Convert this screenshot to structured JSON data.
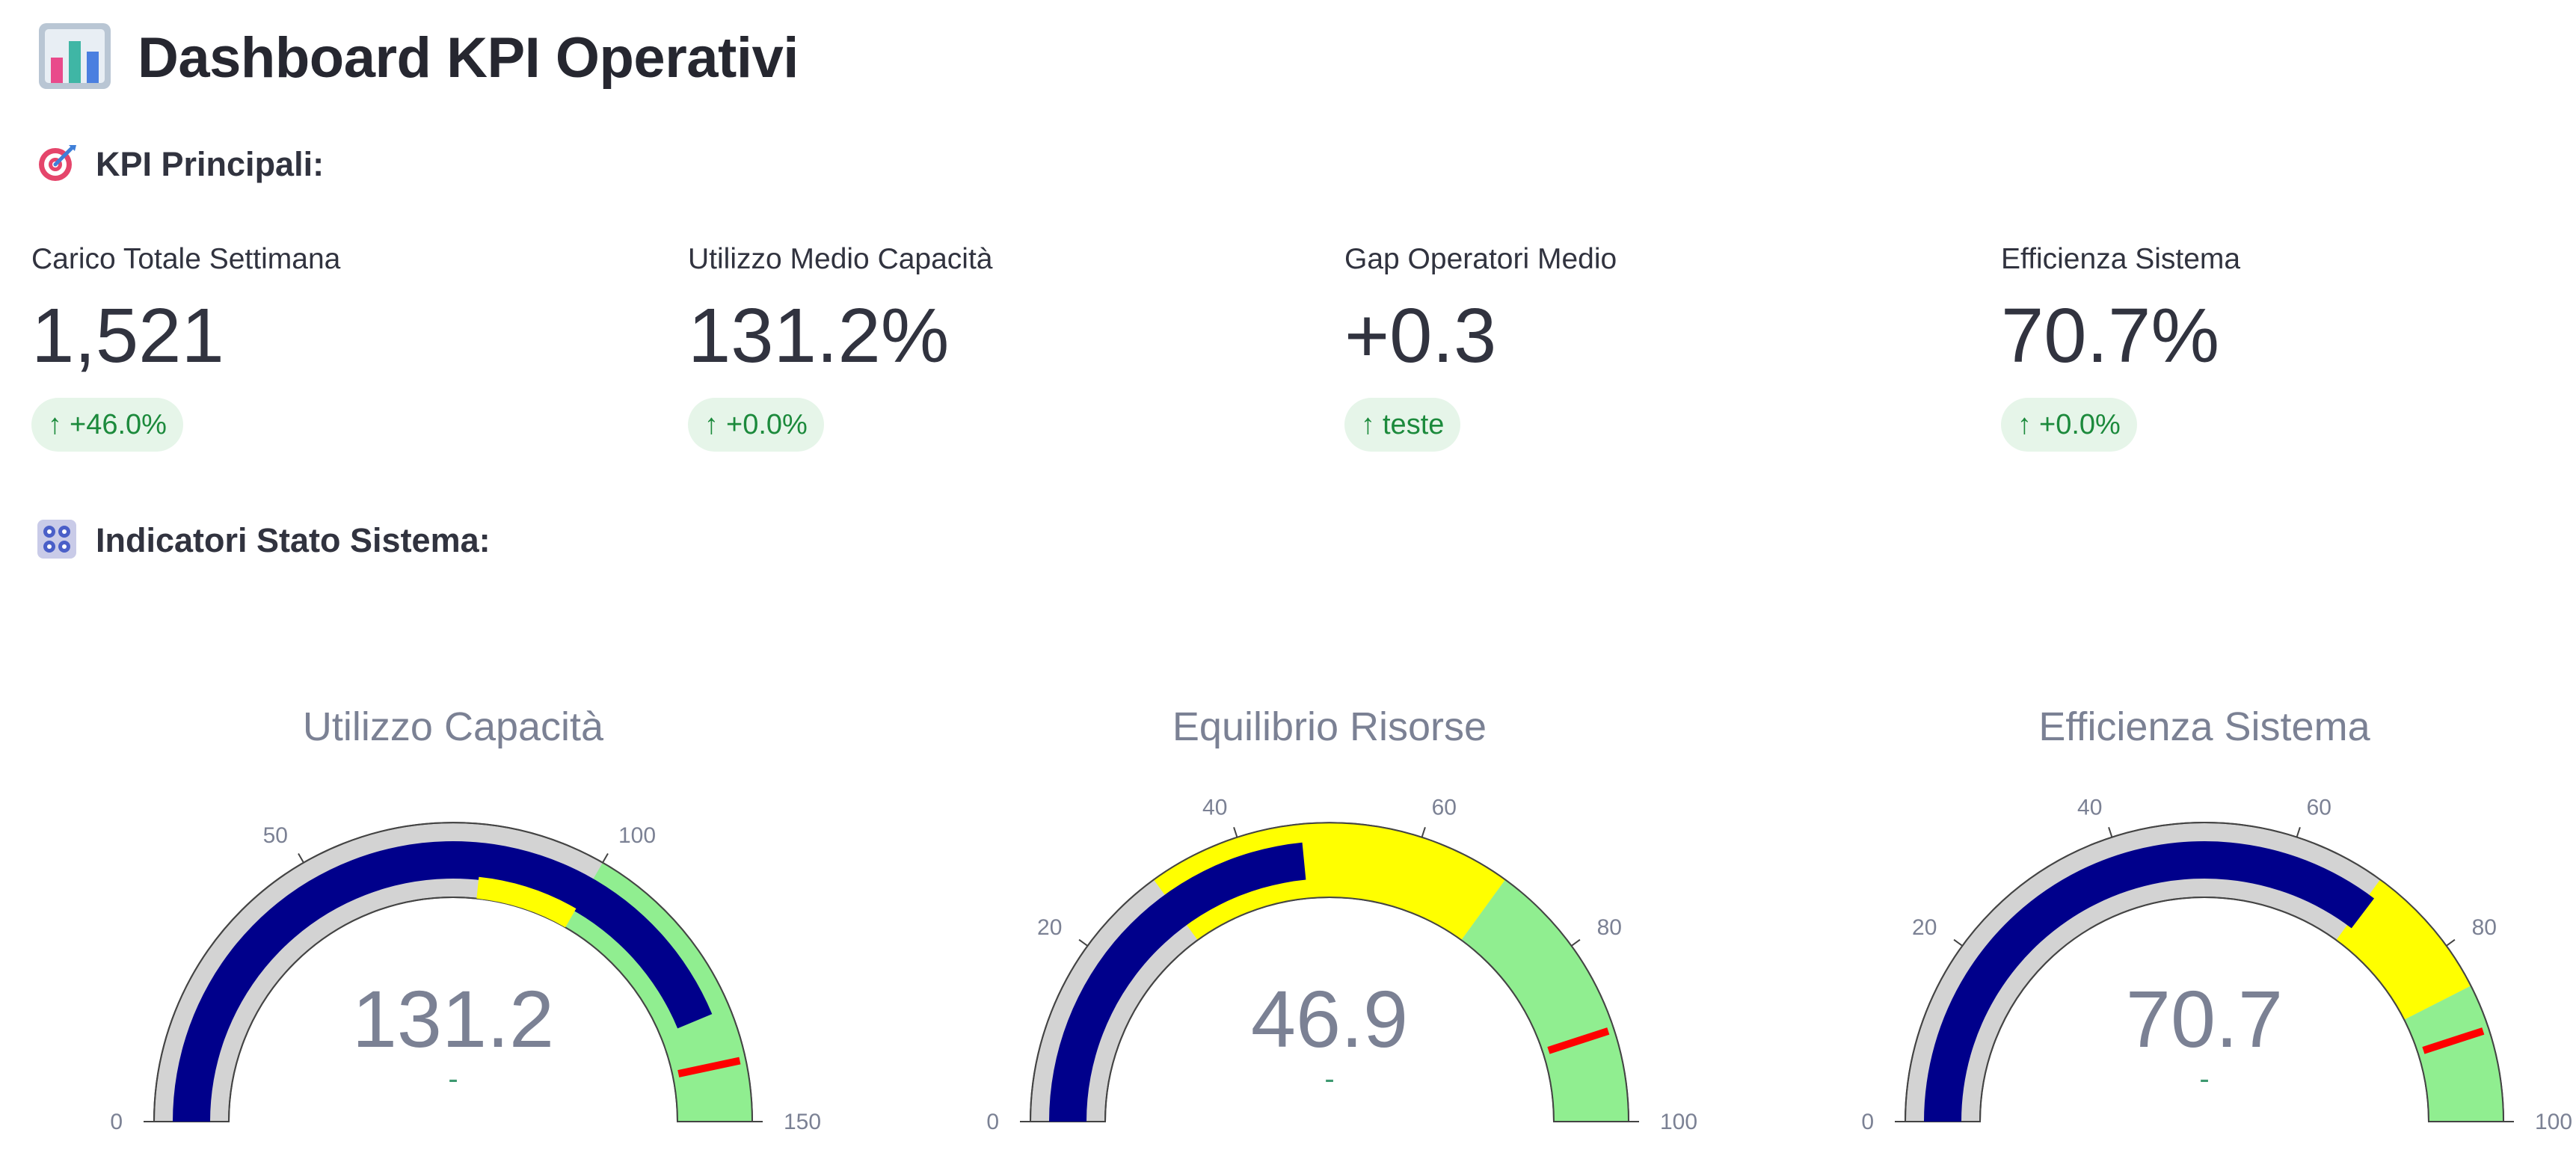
{
  "header": {
    "title": "Dashboard KPI Operativi",
    "icon": "bar-chart-icon"
  },
  "sections": {
    "kpi": {
      "label": "KPI Principali:",
      "icon": "target-icon"
    },
    "status": {
      "label": "Indicatori Stato Sistema:",
      "icon": "control-knobs-icon"
    }
  },
  "metrics": [
    {
      "label": "Carico Totale Settimana",
      "value": "1,521",
      "delta": "+46.0%"
    },
    {
      "label": "Utilizzo Medio Capacità",
      "value": "131.2%",
      "delta": "+0.0%"
    },
    {
      "label": "Gap Operatori Medio",
      "value": "+0.3",
      "delta": "teste"
    },
    {
      "label": "Efficienza Sistema",
      "value": "70.7%",
      "delta": "+0.0%"
    }
  ],
  "colors": {
    "delta_bg": "#e6f5e9",
    "delta_text": "#1c8a3c",
    "gauge_bar": "#00008b",
    "gauge_base": "#d3d3d3",
    "step_yellow": "#ffff00",
    "step_green": "#90ee90",
    "threshold": "#ff0000",
    "gauge_text": "#7b8194"
  },
  "gauges": [
    {
      "title": "Utilizzo Capacità",
      "value": 131.2,
      "value_text": "131.2",
      "delta_text": "-",
      "range": [
        0,
        150
      ],
      "ticks": [
        0,
        50,
        100,
        150
      ],
      "steps": [
        {
          "range": [
            100,
            150
          ],
          "color": "#90ee90"
        }
      ],
      "bar_steps": [
        {
          "range": [
            80,
            100
          ],
          "color": "#ffff00"
        }
      ],
      "threshold": 140
    },
    {
      "title": "Equilibrio Risorse",
      "value": 46.9,
      "value_text": "46.9",
      "delta_text": "-",
      "range": [
        0,
        100
      ],
      "ticks": [
        0,
        20,
        40,
        60,
        80,
        100
      ],
      "steps": [
        {
          "range": [
            30,
            70
          ],
          "color": "#ffff00"
        },
        {
          "range": [
            70,
            100
          ],
          "color": "#90ee90"
        }
      ],
      "bar_steps": [],
      "threshold": 90
    },
    {
      "title": "Efficienza Sistema",
      "value": 70.7,
      "value_text": "70.7",
      "delta_text": "-",
      "range": [
        0,
        100
      ],
      "ticks": [
        0,
        20,
        40,
        60,
        80,
        100
      ],
      "steps": [
        {
          "range": [
            70,
            85
          ],
          "color": "#ffff00"
        },
        {
          "range": [
            85,
            100
          ],
          "color": "#90ee90"
        }
      ],
      "bar_steps": [],
      "threshold": 90
    }
  ]
}
